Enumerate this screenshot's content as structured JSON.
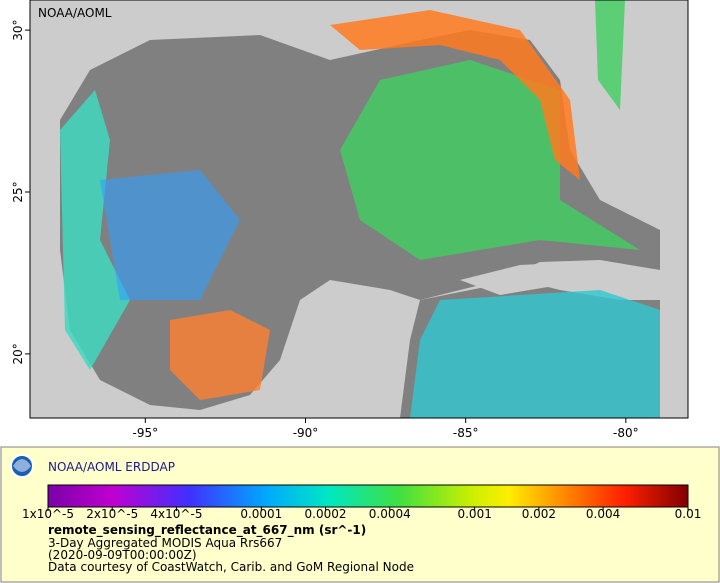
{
  "map": {
    "corner_label": "NOAA/AOML",
    "lon_range": [
      -98.6,
      -78.06
    ],
    "lat_range": [
      18.02,
      30.93
    ],
    "lon_ticks": [
      {
        "value": -95,
        "label": "-95°"
      },
      {
        "value": -90,
        "label": "-90°"
      },
      {
        "value": -85,
        "label": "-85°"
      },
      {
        "value": -80,
        "label": "-80°"
      }
    ],
    "lat_ticks": [
      {
        "value": 30,
        "label": "30°"
      },
      {
        "value": 25,
        "label": "25°"
      },
      {
        "value": 20,
        "label": "20°"
      }
    ]
  },
  "legend": {
    "title": "NOAA/AOML ERDDAP",
    "colorbar": {
      "log_scale": true,
      "range": [
        1e-05,
        0.01
      ],
      "ticks": [
        {
          "value": 1e-05,
          "label": "1x10^-5"
        },
        {
          "value": 2e-05,
          "label": "2x10^-5"
        },
        {
          "value": 4e-05,
          "label": "4x10^-5"
        },
        0.0001,
        0.0002,
        0.0004,
        0.001,
        0.002,
        0.004,
        0.01
      ]
    },
    "variable": "remote_sensing_reflectance_at_667_nm (sr^-1)",
    "lines": [
      "3-Day Aggregated MODIS Aqua Rrs667",
      "(2020-09-09T00:00:00Z)",
      "Data courtesy of CoastWatch, Carib. and GoM Regional Node"
    ]
  }
}
